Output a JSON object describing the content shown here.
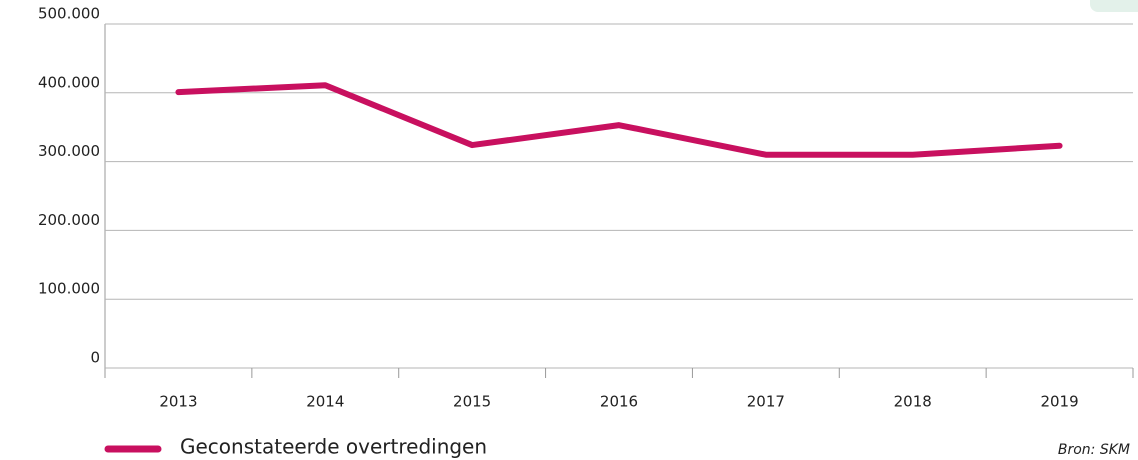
{
  "chart_data": {
    "type": "line",
    "categories": [
      "2013",
      "2014",
      "2015",
      "2016",
      "2017",
      "2018",
      "2019"
    ],
    "series": [
      {
        "name": "Geconstateerde overtredingen",
        "color": "#c8105f",
        "values": [
          401000,
          411000,
          324000,
          353000,
          310000,
          310000,
          323000
        ]
      }
    ],
    "ylim": [
      0,
      500000
    ],
    "yticks": [
      0,
      {
        "value": 100000,
        "label": "100.000"
      },
      {
        "value": 200000,
        "label": "200.000"
      },
      {
        "value": 300000,
        "label": "300.000"
      },
      {
        "value": 400000,
        "label": "400.000"
      },
      {
        "value": 500000,
        "label": "500.000"
      }
    ],
    "grid": true,
    "source": "Bron: SKM"
  }
}
